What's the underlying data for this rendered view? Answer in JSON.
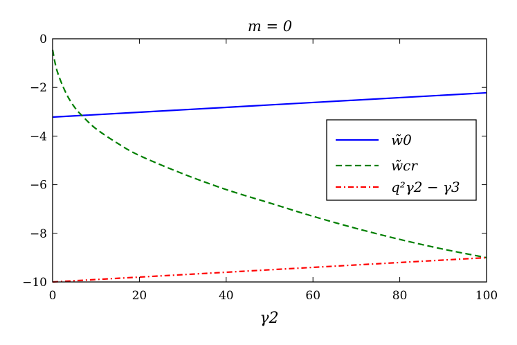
{
  "chart_data": {
    "type": "line",
    "title": "m = 0",
    "xlabel": "γ2",
    "ylabel": "",
    "xlim": [
      0,
      100
    ],
    "ylim": [
      -10,
      0
    ],
    "x_ticks": [
      0,
      20,
      40,
      60,
      80,
      100
    ],
    "y_ticks": [
      0,
      -2,
      -4,
      -6,
      -8,
      -10
    ],
    "x_tick_labels": [
      "0",
      "20",
      "40",
      "60",
      "80",
      "100"
    ],
    "y_tick_labels": [
      "0",
      "−2",
      "−4",
      "−6",
      "−8",
      "−10"
    ],
    "grid": false,
    "legend_position": "right",
    "series": [
      {
        "name": "w̃0",
        "color": "#0000ff",
        "style": "solid",
        "x": [
          0,
          20,
          40,
          60,
          80,
          100
        ],
        "y": [
          -3.22,
          -3.02,
          -2.82,
          -2.62,
          -2.42,
          -2.22
        ]
      },
      {
        "name": "w̃cr",
        "color": "#007f00",
        "style": "dashed",
        "x": [
          0,
          1,
          3,
          5,
          7,
          10,
          15,
          20,
          30,
          40,
          50,
          60,
          70,
          80,
          90,
          100
        ],
        "y": [
          -0.45,
          -1.3,
          -2.2,
          -2.8,
          -3.2,
          -3.7,
          -4.3,
          -4.8,
          -5.55,
          -6.2,
          -6.75,
          -7.3,
          -7.8,
          -8.25,
          -8.65,
          -9.0
        ]
      },
      {
        "name": "q²γ2 − γ3",
        "color": "#ff0000",
        "style": "dashdot",
        "x": [
          0,
          100
        ],
        "y": [
          -10.0,
          -9.0
        ]
      }
    ]
  }
}
